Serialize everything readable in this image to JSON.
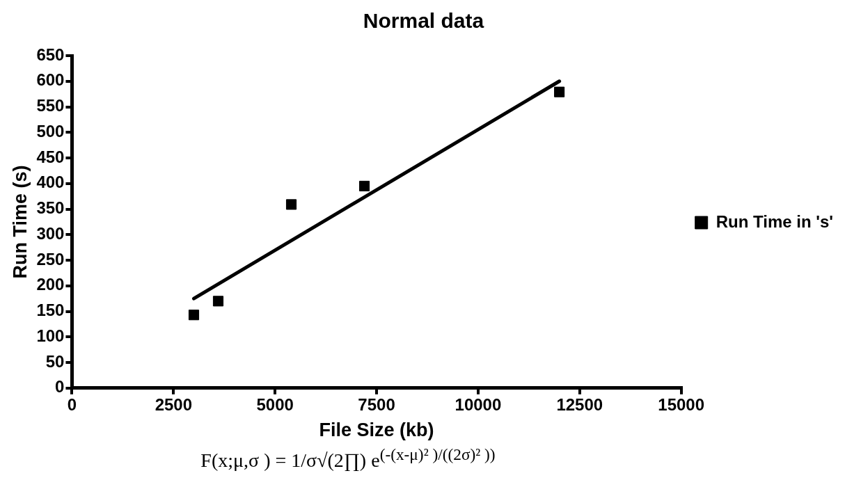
{
  "chart_data": {
    "type": "scatter",
    "title": "Normal data",
    "xlabel": "File Size (kb)",
    "ylabel": "Run Time (s)",
    "series": [
      {
        "name": "Run Time in 's'",
        "color": "#000000",
        "x": [
          3000,
          3600,
          5400,
          7200,
          12000
        ],
        "values": [
          143,
          170,
          359,
          395,
          579
        ]
      },
      {
        "type": "line",
        "marker": "none",
        "color": "#000000",
        "x": [
          3000,
          12000
        ],
        "values": [
          175,
          600
        ]
      }
    ],
    "xlim": [
      0,
      15000
    ],
    "xticks": [
      0,
      2500,
      5000,
      7500,
      10000,
      12500,
      15000
    ],
    "ylim": [
      0,
      650
    ],
    "yticks": [
      0,
      50,
      100,
      150,
      200,
      250,
      300,
      350,
      400,
      450,
      500,
      550,
      600,
      650
    ],
    "grid": false,
    "legend": "right",
    "marker": "square",
    "annotations": [
      "F(x;μ,σ ) = 1/σ√(2∏) e$^{(-(x-μ)² )/((2σ)² ))}$"
    ]
  }
}
